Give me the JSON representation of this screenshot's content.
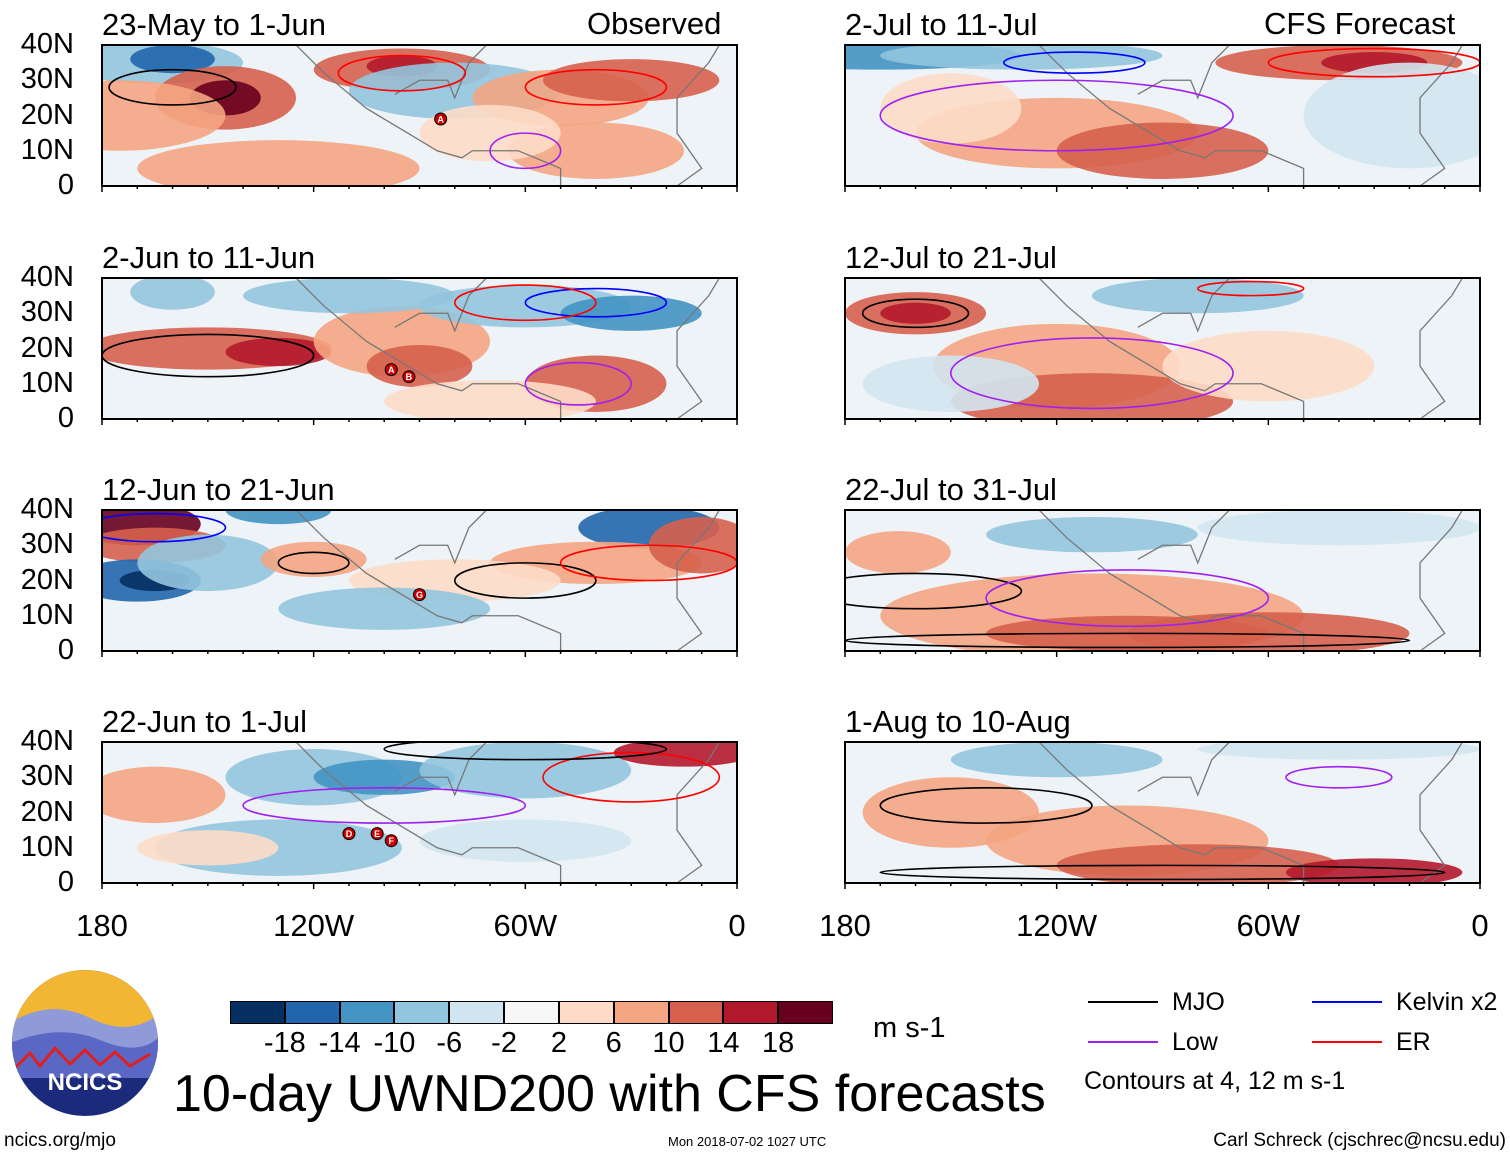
{
  "figure_title": "10-day UWND200 with CFS forecasts",
  "logo_text": "NCICS",
  "footer": {
    "left": "ncics.org/mjo",
    "center": "Mon 2018-07-02 1027 UTC",
    "right": "Carl Schreck (cjschrec@ncsu.edu)"
  },
  "colorbar": {
    "units": "m s-1",
    "ticks": [
      "-18",
      "-14",
      "-10",
      "-6",
      "-2",
      "2",
      "6",
      "10",
      "14",
      "18"
    ],
    "colors": [
      "#053061",
      "#2166ac",
      "#4393c3",
      "#92c5de",
      "#d1e5f0",
      "#f7f7f7",
      "#fddbc7",
      "#f4a582",
      "#d6604d",
      "#b2182b",
      "#67001f"
    ]
  },
  "legend": {
    "items": [
      {
        "label": "MJO",
        "color": "#000000"
      },
      {
        "label": "Kelvin x2",
        "color": "#0000ff"
      },
      {
        "label": "Low",
        "color": "#a020f0"
      },
      {
        "label": "ER",
        "color": "#ff0000"
      }
    ],
    "note": "Contours at 4, 12 m s-1"
  },
  "chart_data": {
    "type": "heatmap",
    "variable": "200-hPa zonal wind anomaly (10-day mean)",
    "y_ticks": [
      "40N",
      "30N",
      "20N",
      "10N",
      "0"
    ],
    "x_ticks": [
      "180",
      "120W",
      "60W",
      "0"
    ],
    "lon_range": [
      -180,
      0
    ],
    "lat_range": [
      0,
      40
    ],
    "column_headers": {
      "left": "Observed",
      "right": "CFS Forecast"
    },
    "panels": [
      {
        "title": "23-May to 1-Jun",
        "column": "left",
        "storms": [
          "A"
        ]
      },
      {
        "title": "2-Jun to 11-Jun",
        "column": "left",
        "storms": [
          "A",
          "B"
        ]
      },
      {
        "title": "12-Jun to 21-Jun",
        "column": "left",
        "storms": [
          "G"
        ]
      },
      {
        "title": "22-Jun to 1-Jul",
        "column": "left",
        "storms": [
          "D",
          "E",
          "F"
        ]
      },
      {
        "title": "2-Jul to 11-Jul",
        "column": "right",
        "storms": []
      },
      {
        "title": "12-Jul to 21-Jul",
        "column": "right",
        "storms": []
      },
      {
        "title": "22-Jul to 31-Jul",
        "column": "right",
        "storms": []
      },
      {
        "title": "1-Aug to 10-Aug",
        "column": "right",
        "storms": []
      }
    ]
  }
}
